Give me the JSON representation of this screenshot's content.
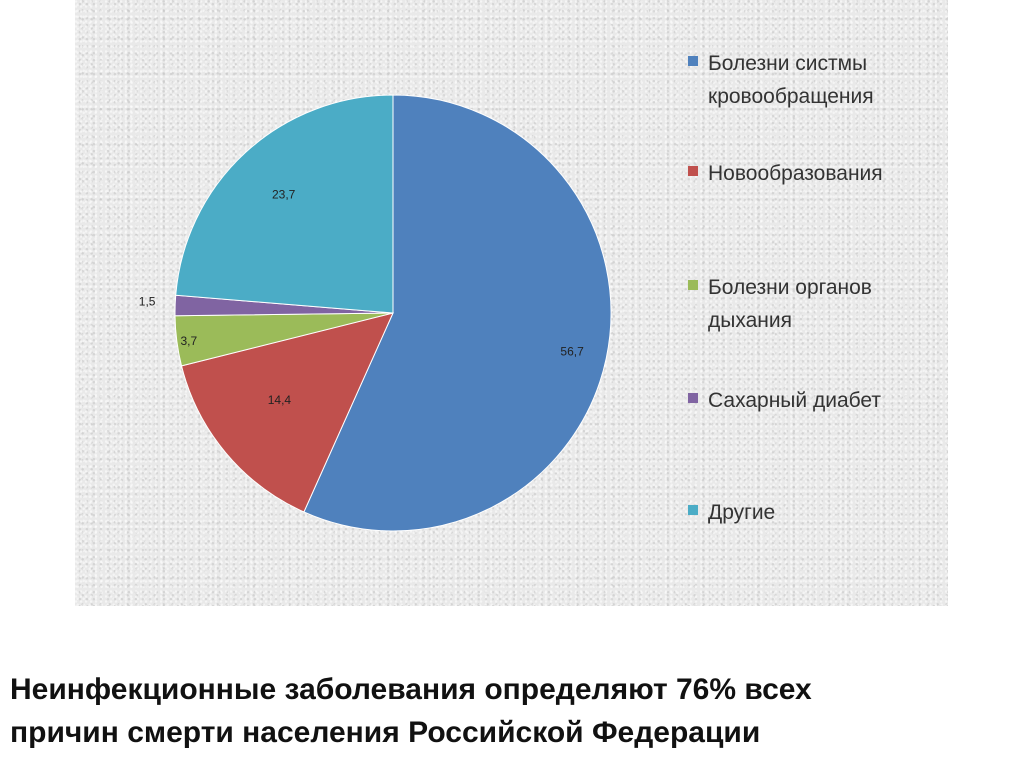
{
  "chart_data": {
    "type": "pie",
    "title": "",
    "start_angle_deg": 0,
    "direction": "clockwise",
    "legend_position": "right",
    "data_labels": true,
    "slices": [
      {
        "name": "Болезни систмы кровообращения",
        "value": 56.7,
        "label": "56,7",
        "color": "#4f81bd"
      },
      {
        "name": "Новообразования",
        "value": 14.4,
        "label": "14,4",
        "color": "#c0504d"
      },
      {
        "name": "Болезни органов дыхания",
        "value": 3.7,
        "label": "3,7",
        "color": "#9bbb59"
      },
      {
        "name": "Сахарный диабет",
        "value": 1.5,
        "label": "1,5",
        "color": "#8064a2"
      },
      {
        "name": "Другие",
        "value": 23.7,
        "label": "23,7",
        "color": "#4bacc6"
      }
    ]
  },
  "legend": {
    "items": [
      {
        "label": "Болезни систмы\nкровообращения",
        "color": "#4f81bd"
      },
      {
        "label": "Новообразования",
        "color": "#c0504d"
      },
      {
        "label": "Болезни органов\nдыхания",
        "color": "#9bbb59"
      },
      {
        "label": "Сахарный диабет",
        "color": "#8064a2"
      },
      {
        "label": "Другие",
        "color": "#4bacc6"
      }
    ]
  },
  "caption": "Неинфекционные заболевания определяют 76% всех\nпричин смерти населения Российской Федерации"
}
